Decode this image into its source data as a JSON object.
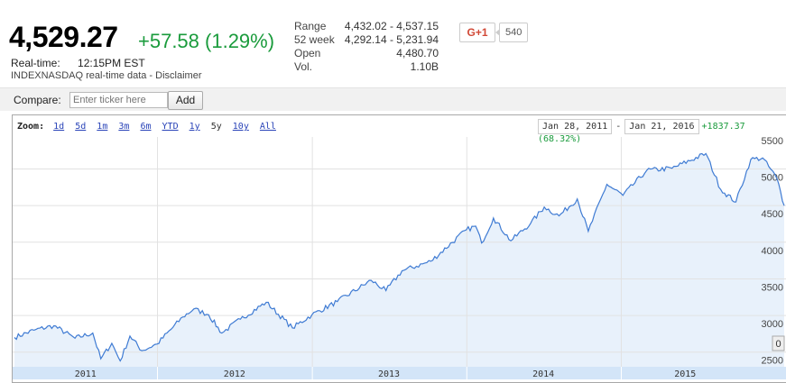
{
  "quote": {
    "price": "4,529.27",
    "change": "+57.58 (1.29%)",
    "realtime_label": "Real-time:",
    "time": "12:15PM EST",
    "source": "INDEXNASDAQ real-time data - Disclaimer"
  },
  "stats": [
    {
      "label": "Range",
      "value": "4,432.02 - 4,537.15"
    },
    {
      "label": "52 week",
      "value": "4,292.14 - 5,231.94"
    },
    {
      "label": "Open",
      "value": "4,480.70"
    },
    {
      "label": "Vol.",
      "value": "1.10B"
    }
  ],
  "social": {
    "gplus_label": "G+1",
    "count": "540"
  },
  "compare": {
    "label": "Compare:",
    "placeholder": "Enter ticker here",
    "add_label": "Add"
  },
  "chart": {
    "zoom_label": "Zoom:",
    "zoom_options": [
      "1d",
      "5d",
      "1m",
      "3m",
      "6m",
      "YTD",
      "1y",
      "5y",
      "10y",
      "All"
    ],
    "zoom_selected": "5y",
    "date_start": "Jan 28, 2011",
    "date_sep": "-",
    "date_end": "Jan 21, 2016",
    "range_change": "+1837.37 (68.32%)",
    "corner_label": "0"
  },
  "colors": {
    "line": "#3f7bd3",
    "fill": "#e8f1fb",
    "up": "#1a9b3c",
    "axis_band": "#d3e5f8"
  },
  "chart_data": {
    "type": "area",
    "title": "",
    "ylabel": "",
    "y_ticks": [
      "5000",
      "4500",
      "4000",
      "3500",
      "3000",
      "2500"
    ],
    "y_top_partial": "5500",
    "x_labels": [
      "2011",
      "2012",
      "2013",
      "2014",
      "2015"
    ],
    "ylim": [
      2300,
      5400
    ],
    "series": [
      {
        "x": [
          "2011-01-28",
          "2011-03-15",
          "2011-05-01",
          "2011-06-20",
          "2011-08-01",
          "2011-08-20",
          "2011-09-15",
          "2011-10-05",
          "2011-10-28",
          "2011-11-25",
          "2011-12-31",
          "2012-03-01",
          "2012-03-27",
          "2012-05-01",
          "2012-06-01",
          "2012-07-15",
          "2012-09-14",
          "2012-11-15",
          "2012-12-31",
          "2013-03-01",
          "2013-05-20",
          "2013-06-24",
          "2013-08-01",
          "2013-10-08",
          "2013-12-31",
          "2014-01-22",
          "2014-02-05",
          "2014-03-05",
          "2014-04-15",
          "2014-06-01",
          "2014-07-03",
          "2014-08-07",
          "2014-09-19",
          "2014-10-15",
          "2014-11-28",
          "2015-01-05",
          "2015-03-02",
          "2015-05-01",
          "2015-07-20",
          "2015-08-24",
          "2015-09-29",
          "2015-11-03",
          "2015-12-01",
          "2016-01-04",
          "2016-01-21"
        ],
        "y": [
          2700,
          2800,
          2860,
          2690,
          2760,
          2410,
          2620,
          2380,
          2720,
          2520,
          2610,
          2980,
          3090,
          3010,
          2760,
          2950,
          3180,
          2830,
          3010,
          3190,
          3480,
          3340,
          3610,
          3740,
          4170,
          4220,
          3990,
          4330,
          4020,
          4260,
          4480,
          4360,
          4590,
          4150,
          4790,
          4640,
          4980,
          5010,
          5210,
          4720,
          4550,
          5130,
          5150,
          4870,
          4500
        ]
      }
    ]
  }
}
